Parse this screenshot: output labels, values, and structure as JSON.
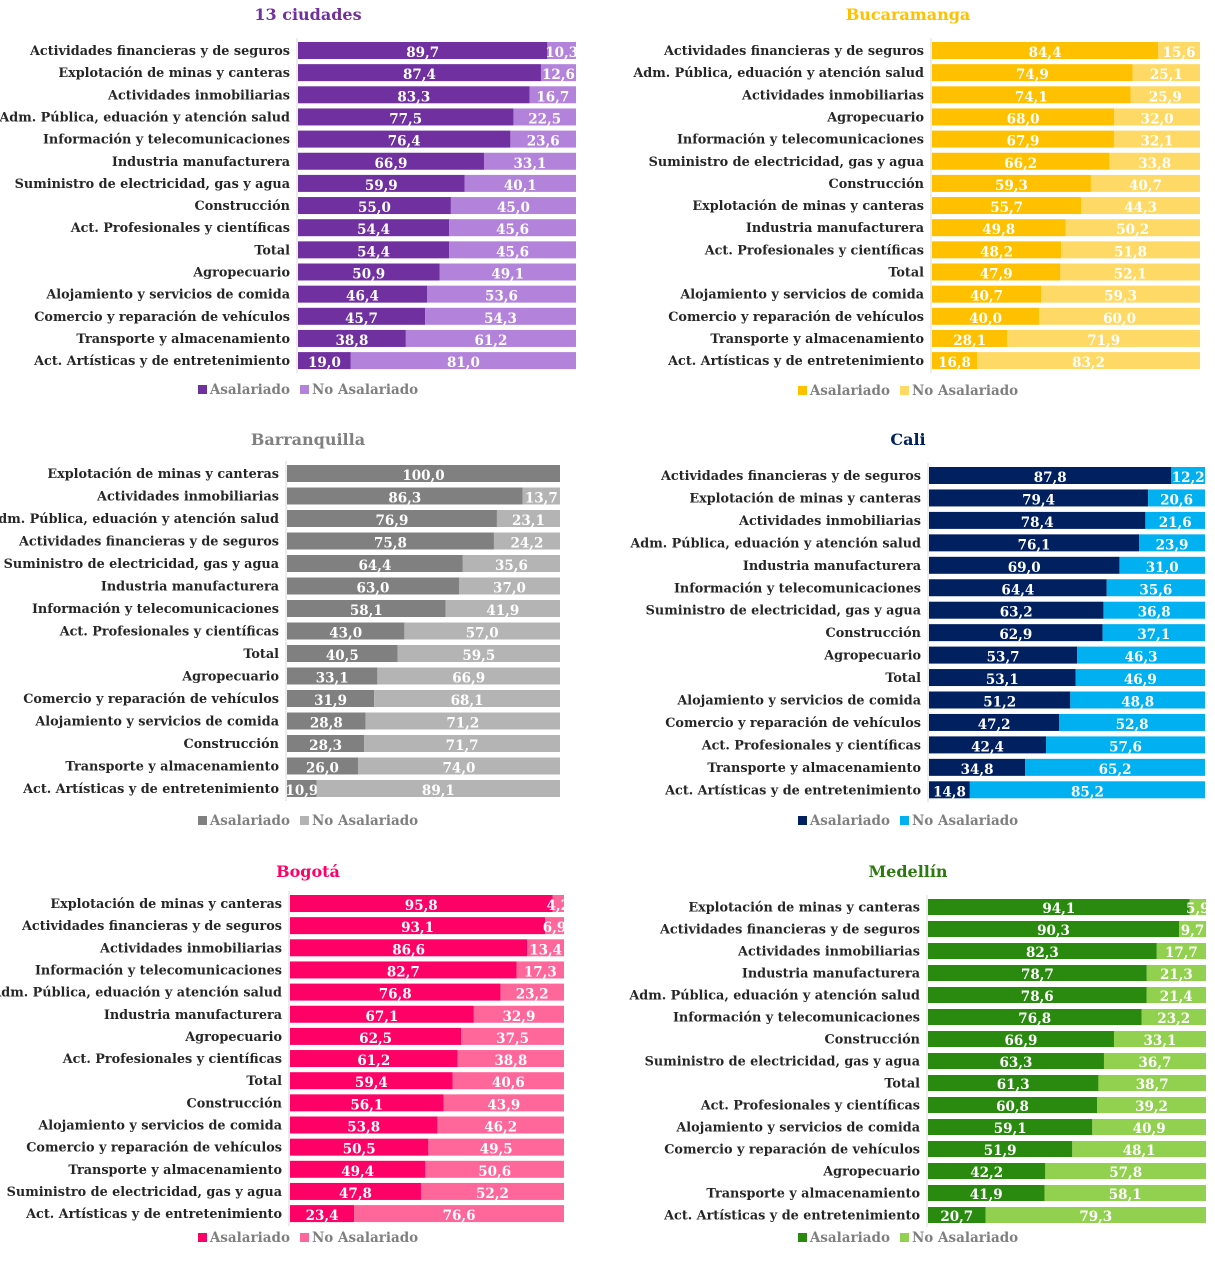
{
  "legend_labels": [
    "Asalariado",
    "No Asalariado"
  ],
  "chart_data": [
    {
      "type": "bar",
      "orientation": "horizontal",
      "stacked": true,
      "title": "13 ciudades",
      "title_color": "#7030a0",
      "colors": [
        "#7030a0",
        "#b383dc"
      ],
      "categories": [
        "Actividades financieras y de seguros",
        "Explotación de minas y canteras",
        "Actividades inmobiliarias",
        "Adm. Pública, eduación y atención salud",
        "Información y telecomunicaciones",
        "Industria manufacturera",
        "Suministro de electricidad, gas y agua",
        "Construcción",
        "Act. Profesionales y científicas",
        "Total",
        "Agropecuario",
        "Alojamiento y servicios de comida",
        "Comercio y reparación de vehículos",
        "Transporte y almacenamiento",
        "Act. Artísticas y de entretenimiento"
      ],
      "series": [
        {
          "name": "Asalariado",
          "values": [
            "89,7",
            "87,4",
            "83,3",
            "77,5",
            "76,4",
            "66,9",
            "59,9",
            "55,0",
            "54,4",
            "54,4",
            "50,9",
            "46,4",
            "45,7",
            "38,8",
            "19,0"
          ]
        },
        {
          "name": "No Asalariado",
          "values": [
            "10,3",
            "12,6",
            "16,7",
            "22,5",
            "23,6",
            "33,1",
            "40,1",
            "45,0",
            "45,6",
            "45,6",
            "49,1",
            "53,6",
            "54,3",
            "61,2",
            "81,0"
          ]
        }
      ]
    },
    {
      "type": "bar",
      "orientation": "horizontal",
      "stacked": true,
      "title": "Bucaramanga",
      "title_color": "#ffc000",
      "colors": [
        "#ffc000",
        "#ffd966"
      ],
      "categories": [
        "Actividades financieras y de seguros",
        "Adm. Pública, eduación y atención salud",
        "Actividades inmobiliarias",
        "Agropecuario",
        "Información y telecomunicaciones",
        "Suministro de electricidad, gas y agua",
        "Construcción",
        "Explotación de minas y canteras",
        "Industria manufacturera",
        "Act. Profesionales y científicas",
        "Total",
        "Alojamiento y servicios de comida",
        "Comercio y reparación de vehículos",
        "Transporte y almacenamiento",
        "Act. Artísticas y de entretenimiento"
      ],
      "series": [
        {
          "name": "Asalariado",
          "values": [
            "84,4",
            "74,9",
            "74,1",
            "68,0",
            "67,9",
            "66,2",
            "59,3",
            "55,7",
            "49,8",
            "48,2",
            "47,9",
            "40,7",
            "40,0",
            "28,1",
            "16,8"
          ]
        },
        {
          "name": "No Asalariado",
          "values": [
            "15,6",
            "25,1",
            "25,9",
            "32,0",
            "32,1",
            "33,8",
            "40,7",
            "44,3",
            "50,2",
            "51,8",
            "52,1",
            "59,3",
            "60,0",
            "71,9",
            "83,2"
          ]
        }
      ]
    },
    {
      "type": "bar",
      "orientation": "horizontal",
      "stacked": true,
      "title": "Barranquilla",
      "title_color": "#808080",
      "colors": [
        "#808080",
        "#b4b4b4"
      ],
      "categories": [
        "Explotación de minas y canteras",
        "Actividades inmobiliarias",
        "Adm. Pública, eduación y atención salud",
        "Actividades financieras y de seguros",
        "Suministro de electricidad, gas y agua",
        "Industria manufacturera",
        "Información y telecomunicaciones",
        "Act. Profesionales y científicas",
        "Total",
        "Agropecuario",
        "Comercio y reparación de vehículos",
        "Alojamiento y servicios de comida",
        "Construcción",
        "Transporte y almacenamiento",
        "Act. Artísticas y de entretenimiento"
      ],
      "series": [
        {
          "name": "Asalariado",
          "values": [
            "100,0",
            "86,3",
            "76,9",
            "75,8",
            "64,4",
            "63,0",
            "58,1",
            "43,0",
            "40,5",
            "33,1",
            "31,9",
            "28,8",
            "28,3",
            "26,0",
            "10,9"
          ]
        },
        {
          "name": "No Asalariado",
          "values": [
            "",
            "13,7",
            "23,1",
            "24,2",
            "35,6",
            "37,0",
            "41,9",
            "57,0",
            "59,5",
            "66,9",
            "68,1",
            "71,2",
            "71,7",
            "74,0",
            "89,1"
          ]
        }
      ]
    },
    {
      "type": "bar",
      "orientation": "horizontal",
      "stacked": true,
      "title": "Cali",
      "title_color": "#002060",
      "colors": [
        "#002060",
        "#00b0f0"
      ],
      "categories": [
        "Actividades financieras y de seguros",
        "Explotación de minas y canteras",
        "Actividades inmobiliarias",
        "Adm. Pública, eduación y atención salud",
        "Industria manufacturera",
        "Información y telecomunicaciones",
        "Suministro de electricidad, gas y agua",
        "Construcción",
        "Agropecuario",
        "Total",
        "Alojamiento y servicios de comida",
        "Comercio y reparación de vehículos",
        "Act. Profesionales y científicas",
        "Transporte y almacenamiento",
        "Act. Artísticas y de entretenimiento"
      ],
      "series": [
        {
          "name": "Asalariado",
          "values": [
            "87,8",
            "79,4",
            "78,4",
            "76,1",
            "69,0",
            "64,4",
            "63,2",
            "62,9",
            "53,7",
            "53,1",
            "51,2",
            "47,2",
            "42,4",
            "34,8",
            "14,8"
          ]
        },
        {
          "name": "No Asalariado",
          "values": [
            "12,2",
            "20,6",
            "21,6",
            "23,9",
            "31,0",
            "35,6",
            "36,8",
            "37,1",
            "46,3",
            "46,9",
            "48,8",
            "52,8",
            "57,6",
            "65,2",
            "85,2"
          ]
        }
      ]
    },
    {
      "type": "bar",
      "orientation": "horizontal",
      "stacked": true,
      "title": "Bogotá",
      "title_color": "#ff0066",
      "colors": [
        "#ff0066",
        "#ff6699"
      ],
      "categories": [
        "Explotación de minas y canteras",
        "Actividades financieras y de seguros",
        "Actividades inmobiliarias",
        "Información y telecomunicaciones",
        "Adm. Pública, eduación y atención salud",
        "Industria manufacturera",
        "Agropecuario",
        "Act. Profesionales y científicas",
        "Total",
        "Construcción",
        "Alojamiento y servicios de comida",
        "Comercio y reparación de vehículos",
        "Transporte y almacenamiento",
        "Suministro de electricidad, gas y agua",
        "Act. Artísticas y de entretenimiento"
      ],
      "series": [
        {
          "name": "Asalariado",
          "values": [
            "95,8",
            "93,1",
            "86,6",
            "82,7",
            "76,8",
            "67,1",
            "62,5",
            "61,2",
            "59,4",
            "56,1",
            "53,8",
            "50,5",
            "49,4",
            "47,8",
            "23,4"
          ]
        },
        {
          "name": "No Asalariado",
          "values": [
            "4,2",
            "6,9",
            "13,4",
            "17,3",
            "23,2",
            "32,9",
            "37,5",
            "38,8",
            "40,6",
            "43,9",
            "46,2",
            "49,5",
            "50,6",
            "52,2",
            "76,6"
          ]
        }
      ]
    },
    {
      "type": "bar",
      "orientation": "horizontal",
      "stacked": true,
      "title": "Medellín",
      "title_color": "#2a7a0e",
      "colors": [
        "#2a8a10",
        "#92d050"
      ],
      "categories": [
        "Explotación de minas y canteras",
        "Actividades financieras y de seguros",
        "Actividades inmobiliarias",
        "Industria manufacturera",
        "Adm. Pública, eduación y atención salud",
        "Información y telecomunicaciones",
        "Construcción",
        "Suministro de electricidad, gas y agua",
        "Total",
        "Act. Profesionales y científicas",
        "Alojamiento y servicios de comida",
        "Comercio y reparación de vehículos",
        "Agropecuario",
        "Transporte y almacenamiento",
        "Act. Artísticas y de entretenimiento"
      ],
      "series": [
        {
          "name": "Asalariado",
          "values": [
            "94,1",
            "90,3",
            "82,3",
            "78,7",
            "78,6",
            "76,8",
            "66,9",
            "63,3",
            "61,3",
            "60,8",
            "59,1",
            "51,9",
            "42,2",
            "41,9",
            "20,7"
          ]
        },
        {
          "name": "No Asalariado",
          "values": [
            "5,9",
            "9,7",
            "17,7",
            "21,3",
            "21,4",
            "23,2",
            "33,1",
            "36,7",
            "38,7",
            "39,2",
            "40,9",
            "48,1",
            "57,8",
            "58,1",
            "79,3"
          ]
        }
      ]
    }
  ]
}
